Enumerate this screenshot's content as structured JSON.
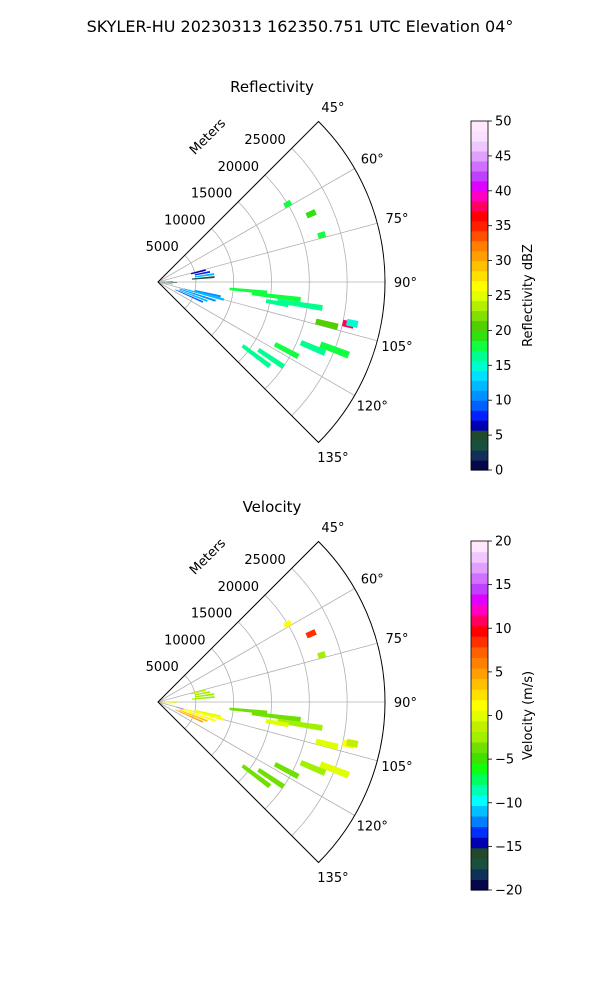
{
  "suptitle": "SKYLER-HU  20230313  162350.751 UTC Elevation 04°",
  "chart_data": [
    {
      "type": "heatmap",
      "title": "Reflectivity",
      "radial_label": "Meters",
      "radial_ticks": [
        "5000",
        "10000",
        "15000",
        "20000",
        "25000"
      ],
      "radial_tick_values": [
        5000,
        10000,
        15000,
        20000,
        25000
      ],
      "rmax": 30000,
      "angle_ticks": [
        "45°",
        "60°",
        "75°",
        "90°",
        "105°",
        "120°",
        "135°"
      ],
      "angle_tick_values": [
        45,
        60,
        75,
        90,
        105,
        120,
        135
      ],
      "azimuth_range": [
        45,
        135
      ],
      "grid": true,
      "colorbar": {
        "label": "Reflectivity dBZ",
        "ticks": [
          "0",
          "5",
          "10",
          "15",
          "20",
          "25",
          "30",
          "35",
          "40",
          "45",
          "50"
        ],
        "range": [
          0,
          50
        ],
        "colors": [
          "#06064a",
          "#10305a",
          "#185040",
          "#204a2a",
          "#0000b0",
          "#0020ff",
          "#0060ff",
          "#0090ff",
          "#00b8ff",
          "#00e0ff",
          "#00ffd0",
          "#00ff90",
          "#10ff40",
          "#30e010",
          "#50d000",
          "#80e000",
          "#b0f000",
          "#e0ff00",
          "#ffff00",
          "#ffe000",
          "#ffc000",
          "#ffa000",
          "#ff8000",
          "#ff5000",
          "#ff2000",
          "#ff0000",
          "#ff0060",
          "#ff00c0",
          "#e000ff",
          "#c040ff",
          "#d070ff",
          "#e0a0ff",
          "#f0c8ff",
          "#f8e0ff",
          "#ffe8ff"
        ]
      },
      "echoes": [
        {
          "az": 95.5,
          "r0": 9500,
          "r1": 14500,
          "value": 18
        },
        {
          "az": 97,
          "r0": 12500,
          "r1": 19000,
          "value": 18
        },
        {
          "az": 99,
          "r0": 16000,
          "r1": 22000,
          "value": 17
        },
        {
          "az": 104,
          "r0": 21500,
          "r1": 24500,
          "value": 20
        },
        {
          "az": 102.5,
          "r0": 25000,
          "r1": 26500,
          "value": 38
        },
        {
          "az": 111,
          "r0": 23000,
          "r1": 27000,
          "value": 18
        },
        {
          "az": 113,
          "r0": 20500,
          "r1": 24000,
          "value": 17
        },
        {
          "az": 118,
          "r0": 17500,
          "r1": 21000,
          "value": 18
        },
        {
          "az": 124,
          "r0": 16000,
          "r1": 20000,
          "value": 17
        },
        {
          "az": 127,
          "r0": 14000,
          "r1": 18500,
          "value": 17
        },
        {
          "az": 105,
          "r0": 3500,
          "r1": 9000,
          "value": 12
        },
        {
          "az": 108,
          "r0": 3000,
          "r1": 8000,
          "value": 10
        },
        {
          "az": 111,
          "r0": 3000,
          "r1": 7000,
          "value": 12
        },
        {
          "az": 114,
          "r0": 2500,
          "r1": 6500,
          "value": 9
        },
        {
          "az": 103,
          "r0": 5000,
          "r1": 8500,
          "value": 11
        },
        {
          "az": 82,
          "r0": 5000,
          "r1": 7500,
          "value": 12
        },
        {
          "az": 79,
          "r0": 5000,
          "r1": 7000,
          "value": 8
        },
        {
          "az": 85,
          "r0": 4500,
          "r1": 7500,
          "value": 3
        },
        {
          "az": 76,
          "r0": 4500,
          "r1": 6500,
          "value": 6
        },
        {
          "az": 92,
          "r0": 500,
          "r1": 2500,
          "value": 4
        },
        {
          "az": 98,
          "r0": 500,
          "r1": 2000,
          "value": 5
        },
        {
          "az": 88,
          "r0": 500,
          "r1": 2000,
          "value": 3
        },
        {
          "az": 66,
          "r0": 21500,
          "r1": 22800,
          "value": 19
        },
        {
          "az": 74,
          "r0": 22000,
          "r1": 23000,
          "value": 18
        },
        {
          "az": 59,
          "r0": 19500,
          "r1": 20500,
          "value": 18
        },
        {
          "az": 100,
          "r0": 14500,
          "r1": 17500,
          "value": 17
        },
        {
          "az": 102,
          "r0": 25500,
          "r1": 27000,
          "value": 15
        }
      ]
    },
    {
      "type": "heatmap",
      "title": "Velocity",
      "radial_label": "Meters",
      "radial_ticks": [
        "5000",
        "10000",
        "15000",
        "20000",
        "25000"
      ],
      "radial_tick_values": [
        5000,
        10000,
        15000,
        20000,
        25000
      ],
      "rmax": 30000,
      "angle_ticks": [
        "45°",
        "60°",
        "75°",
        "90°",
        "105°",
        "120°",
        "135°"
      ],
      "angle_tick_values": [
        45,
        60,
        75,
        90,
        105,
        120,
        135
      ],
      "azimuth_range": [
        45,
        135
      ],
      "grid": true,
      "colorbar": {
        "label": "Velocity (m/s)",
        "ticks": [
          "−20",
          "−15",
          "−10",
          "−5",
          "0",
          "5",
          "10",
          "15",
          "20"
        ],
        "range": [
          -20,
          20
        ],
        "colors": [
          "#06064a",
          "#10305a",
          "#185040",
          "#204a2a",
          "#0000b0",
          "#0030ff",
          "#0080ff",
          "#00c0ff",
          "#00ffff",
          "#00ffb0",
          "#00ff60",
          "#10ff10",
          "#40e000",
          "#70e000",
          "#a0f000",
          "#c0f000",
          "#e0ff00",
          "#ffff00",
          "#ffe000",
          "#ffc000",
          "#ffa000",
          "#ff8000",
          "#ff6000",
          "#ff3000",
          "#ff0000",
          "#ff0060",
          "#ff00c0",
          "#e000ff",
          "#c040ff",
          "#d070ff",
          "#e0a0ff",
          "#f0c8ff",
          "#ffe8ff"
        ]
      },
      "echoes": [
        {
          "az": 95.5,
          "r0": 9500,
          "r1": 14500,
          "value": -4
        },
        {
          "az": 97,
          "r0": 12500,
          "r1": 19000,
          "value": -4
        },
        {
          "az": 99,
          "r0": 16000,
          "r1": 22000,
          "value": -3
        },
        {
          "az": 104,
          "r0": 21500,
          "r1": 24500,
          "value": 0
        },
        {
          "az": 102.5,
          "r0": 25000,
          "r1": 26500,
          "value": 1
        },
        {
          "az": 111,
          "r0": 23000,
          "r1": 27000,
          "value": 0
        },
        {
          "az": 113,
          "r0": 20500,
          "r1": 24000,
          "value": -3
        },
        {
          "az": 118,
          "r0": 17500,
          "r1": 21000,
          "value": -4
        },
        {
          "az": 124,
          "r0": 16000,
          "r1": 20000,
          "value": -4
        },
        {
          "az": 127,
          "r0": 14000,
          "r1": 18500,
          "value": -4
        },
        {
          "az": 105,
          "r0": 3500,
          "r1": 9000,
          "value": 1
        },
        {
          "az": 108,
          "r0": 3000,
          "r1": 8000,
          "value": 1
        },
        {
          "az": 111,
          "r0": 3000,
          "r1": 7000,
          "value": 4
        },
        {
          "az": 114,
          "r0": 2500,
          "r1": 6500,
          "value": 5
        },
        {
          "az": 103,
          "r0": 5000,
          "r1": 8500,
          "value": 0
        },
        {
          "az": 82,
          "r0": 5000,
          "r1": 7500,
          "value": -3
        },
        {
          "az": 79,
          "r0": 5000,
          "r1": 7000,
          "value": -2
        },
        {
          "az": 85,
          "r0": 4500,
          "r1": 7500,
          "value": -3
        },
        {
          "az": 76,
          "r0": 4500,
          "r1": 6500,
          "value": -1
        },
        {
          "az": 92,
          "r0": 500,
          "r1": 2500,
          "value": 1
        },
        {
          "az": 98,
          "r0": 500,
          "r1": 2000,
          "value": 0
        },
        {
          "az": 106,
          "r0": 2500,
          "r1": 3500,
          "value": 16
        },
        {
          "az": 66,
          "r0": 21500,
          "r1": 22800,
          "value": 8
        },
        {
          "az": 74,
          "r0": 22000,
          "r1": 23000,
          "value": -3
        },
        {
          "az": 59,
          "r0": 19500,
          "r1": 20500,
          "value": 1
        },
        {
          "az": 100,
          "r0": 14500,
          "r1": 17500,
          "value": 0
        },
        {
          "az": 102,
          "r0": 25500,
          "r1": 27000,
          "value": -1
        }
      ]
    }
  ]
}
